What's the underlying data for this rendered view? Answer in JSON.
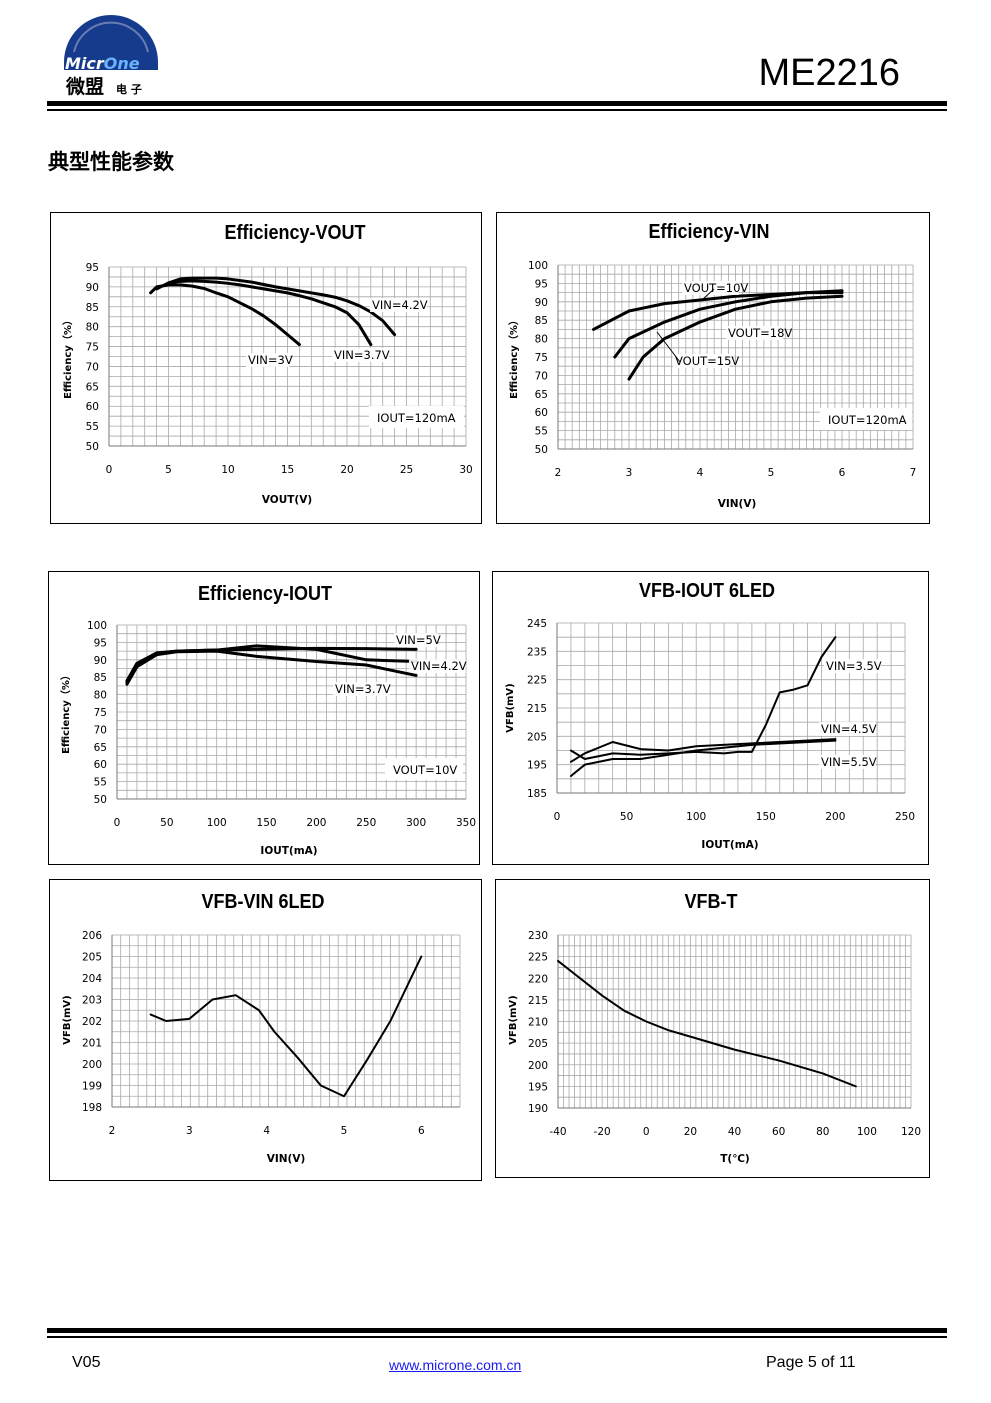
{
  "header": {
    "logo_text": "MicrOne",
    "logo_cn": "微盟",
    "logo_cn_small": "电 子",
    "part_number": "ME2216"
  },
  "section_title": "典型性能参数",
  "footer": {
    "version": "V05",
    "url": "www.microne.com.cn",
    "page": "Page 5 of 11"
  },
  "chart_data": [
    {
      "type": "line",
      "title": "Efficiency-VOUT",
      "xlabel": "VOUT(V)",
      "ylabel": "Efficiency（%）",
      "xlim": [
        0,
        30
      ],
      "ylim": [
        50,
        95
      ],
      "xticks": [
        0,
        5,
        10,
        15,
        20,
        25,
        30
      ],
      "yticks": [
        50,
        55,
        60,
        65,
        70,
        75,
        80,
        85,
        90,
        95
      ],
      "grid": true,
      "note": "IOUT=120mA",
      "series": [
        {
          "name": "VIN=3V",
          "x": [
            3.5,
            4,
            5,
            6,
            7,
            8,
            9,
            10,
            11,
            12,
            13,
            14,
            15,
            16
          ],
          "y": [
            88.5,
            90,
            90.5,
            90.5,
            90.2,
            89.6,
            88.5,
            87.5,
            86,
            84.5,
            82.7,
            80.5,
            78,
            75.5
          ]
        },
        {
          "name": "VIN=3.7V",
          "x": [
            4,
            5,
            6,
            7,
            8,
            9,
            10,
            11,
            12,
            13,
            14,
            15,
            16,
            17,
            18,
            19,
            20,
            21,
            22
          ],
          "y": [
            89.5,
            91,
            91.4,
            91.5,
            91.4,
            91.2,
            90.9,
            90.5,
            90,
            89.5,
            89,
            88.5,
            87.8,
            87,
            86,
            85,
            83.5,
            80.5,
            75.5
          ]
        },
        {
          "name": "VIN=4.2V",
          "x": [
            5,
            6,
            7,
            8,
            9,
            10,
            12,
            14,
            16,
            18,
            19,
            20,
            21,
            22,
            23,
            24
          ],
          "y": [
            91,
            92,
            92.2,
            92.2,
            92.2,
            92,
            91.2,
            90,
            89,
            88,
            87.4,
            86.5,
            85.3,
            83.7,
            81.5,
            78
          ]
        }
      ]
    },
    {
      "type": "line",
      "title": "Efficiency-VIN",
      "xlabel": "VIN(V)",
      "ylabel": "Efficiency（%）",
      "xlim": [
        2,
        7
      ],
      "ylim": [
        50,
        100
      ],
      "xticks": [
        2,
        3,
        4,
        5,
        6,
        7
      ],
      "yticks": [
        50,
        55,
        60,
        65,
        70,
        75,
        80,
        85,
        90,
        95,
        100
      ],
      "grid": true,
      "note": "IOUT=120mA",
      "series": [
        {
          "name": "VOUT=10V",
          "x": [
            2.5,
            3,
            3.5,
            4,
            4.5,
            5,
            5.5,
            6
          ],
          "y": [
            82.5,
            87.5,
            89.5,
            90.5,
            91.5,
            92,
            92.5,
            92.5
          ]
        },
        {
          "name": "VOUT=18V",
          "x": [
            2.8,
            3,
            3.5,
            4,
            4.5,
            5,
            5.5,
            6
          ],
          "y": [
            75,
            80,
            84.5,
            88,
            90,
            91.5,
            92.5,
            93
          ]
        },
        {
          "name": "VOUT=15V",
          "x": [
            3,
            3.2,
            3.5,
            4,
            4.5,
            5,
            5.5,
            6
          ],
          "y": [
            69,
            75,
            80,
            84.5,
            88,
            90,
            91,
            91.5
          ]
        }
      ]
    },
    {
      "type": "line",
      "title": "Efficiency-IOUT",
      "xlabel": "IOUT(mA)",
      "ylabel": "Efficiency（%）",
      "xlim": [
        0,
        350
      ],
      "ylim": [
        50,
        100
      ],
      "xticks": [
        0,
        50,
        100,
        150,
        200,
        250,
        300,
        350
      ],
      "yticks": [
        50,
        55,
        60,
        65,
        70,
        75,
        80,
        85,
        90,
        95,
        100
      ],
      "grid": true,
      "note": "VOUT=10V",
      "series": [
        {
          "name": "VIN=5V",
          "x": [
            10,
            20,
            40,
            60,
            100,
            140,
            200,
            250,
            300
          ],
          "y": [
            84,
            89,
            92,
            92.5,
            92.8,
            93,
            93.3,
            93.2,
            93
          ]
        },
        {
          "name": "VIN=4.2V",
          "x": [
            10,
            20,
            40,
            60,
            100,
            140,
            200,
            250,
            300
          ],
          "y": [
            83.5,
            88.5,
            91.8,
            92.5,
            92.8,
            94,
            93,
            90,
            89.5
          ]
        },
        {
          "name": "VIN=3.7V",
          "x": [
            10,
            20,
            40,
            60,
            100,
            140,
            200,
            250,
            300
          ],
          "y": [
            83,
            88,
            91.5,
            92.3,
            92.5,
            91,
            89.5,
            88.5,
            85.5
          ]
        }
      ]
    },
    {
      "type": "line",
      "title": "VFB-IOUT    6LED",
      "xlabel": "IOUT(mA)",
      "ylabel": "VFB(mV)",
      "xlim": [
        0,
        250
      ],
      "ylim": [
        185,
        245
      ],
      "xticks": [
        0,
        50,
        100,
        150,
        200,
        250
      ],
      "yticks": [
        185,
        195,
        205,
        215,
        225,
        235,
        245
      ],
      "grid": true,
      "series": [
        {
          "name": "VIN=3.5V",
          "x": [
            10,
            20,
            40,
            60,
            80,
            100,
            120,
            130,
            140,
            150,
            160,
            170,
            180,
            190,
            200
          ],
          "y": [
            200,
            197,
            199,
            198.5,
            199,
            199.5,
            199,
            199.5,
            199.5,
            209,
            220.5,
            221.5,
            223,
            233,
            240
          ]
        },
        {
          "name": "VIN=4.5V",
          "x": [
            10,
            20,
            40,
            60,
            80,
            100,
            140,
            200
          ],
          "y": [
            196,
            199,
            203,
            200.5,
            200,
            201.5,
            202.5,
            204
          ]
        },
        {
          "name": "VIN=5.5V",
          "x": [
            10,
            20,
            40,
            60,
            80,
            100,
            140,
            200
          ],
          "y": [
            191,
            195,
            197,
            197,
            198.5,
            200,
            202,
            203.5
          ]
        }
      ]
    },
    {
      "type": "line",
      "title": "VFB-VIN 6LED",
      "xlabel": "VIN(V)",
      "ylabel": "VFB(mV)",
      "xlim": [
        2,
        6.5
      ],
      "ylim": [
        198,
        206
      ],
      "xticks": [
        2,
        3,
        4,
        5,
        6
      ],
      "yticks": [
        198,
        199,
        200,
        201,
        202,
        203,
        204,
        205,
        206
      ],
      "grid": true,
      "series": [
        {
          "name": "",
          "x": [
            2.5,
            2.7,
            3.0,
            3.3,
            3.6,
            3.9,
            4.1,
            4.4,
            4.7,
            5.0,
            5.3,
            5.6,
            6.0
          ],
          "y": [
            202.3,
            202,
            202.1,
            203,
            203.2,
            202.5,
            201.5,
            200.3,
            199,
            198.5,
            200.2,
            202,
            205
          ]
        }
      ]
    },
    {
      "type": "line",
      "title": "VFB-T",
      "xlabel": "T(℃)",
      "ylabel": "VFB(mV)",
      "xlim": [
        -40,
        120
      ],
      "ylim": [
        190,
        230
      ],
      "xticks": [
        -40,
        -20,
        0,
        20,
        40,
        60,
        80,
        100,
        120
      ],
      "yticks": [
        190,
        195,
        200,
        205,
        210,
        215,
        220,
        225,
        230
      ],
      "grid": true,
      "series": [
        {
          "name": "",
          "x": [
            -40,
            -30,
            -20,
            -10,
            0,
            10,
            20,
            40,
            60,
            70,
            80,
            95
          ],
          "y": [
            224,
            220,
            216,
            212.5,
            210,
            208,
            206.5,
            203.5,
            201,
            199.5,
            198,
            195
          ]
        }
      ]
    }
  ]
}
